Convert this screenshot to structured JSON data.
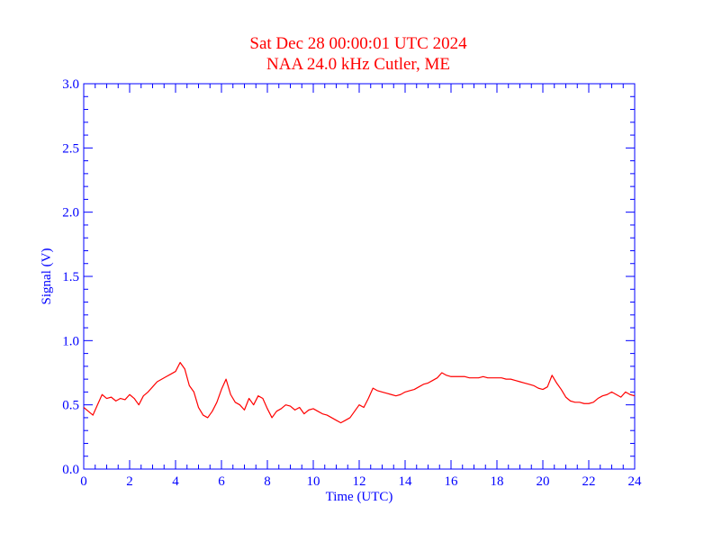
{
  "chart_data": {
    "type": "line",
    "title": "Sat Dec 28 00:00:01 UTC 2024",
    "subtitle": "NAA 24.0 kHz Cutler, ME",
    "xlabel": "Time (UTC)",
    "ylabel": "Signal (V)",
    "xlim": [
      0,
      24
    ],
    "ylim": [
      0.0,
      3.0
    ],
    "x_ticks": [
      0,
      2,
      4,
      6,
      8,
      10,
      12,
      14,
      16,
      18,
      20,
      22,
      24
    ],
    "x_tick_labels": [
      "0",
      "2",
      "4",
      "6",
      "8",
      "10",
      "12",
      "14",
      "16",
      "18",
      "20",
      "22",
      "24"
    ],
    "y_ticks": [
      0.0,
      0.5,
      1.0,
      1.5,
      2.0,
      2.5,
      3.0
    ],
    "y_tick_labels": [
      "0.0",
      "0.5",
      "1.0",
      "1.5",
      "2.0",
      "2.5",
      "3.0"
    ],
    "grid": false,
    "colors": {
      "axes": "#0000ff",
      "title": "#ff0000",
      "series": "#ff0000"
    },
    "series": [
      {
        "x": [
          0.0,
          0.2,
          0.4,
          0.6,
          0.8,
          1.0,
          1.2,
          1.4,
          1.6,
          1.8,
          2.0,
          2.2,
          2.4,
          2.6,
          2.8,
          3.0,
          3.2,
          3.4,
          3.6,
          3.8,
          4.0,
          4.2,
          4.4,
          4.6,
          4.8,
          5.0,
          5.2,
          5.4,
          5.6,
          5.8,
          6.0,
          6.2,
          6.4,
          6.6,
          6.8,
          7.0,
          7.2,
          7.4,
          7.6,
          7.8,
          8.0,
          8.2,
          8.4,
          8.6,
          8.8,
          9.0,
          9.2,
          9.4,
          9.6,
          9.8,
          10.0,
          10.2,
          10.4,
          10.6,
          10.8,
          11.0,
          11.2,
          11.4,
          11.6,
          11.8,
          12.0,
          12.2,
          12.4,
          12.6,
          12.8,
          13.0,
          13.2,
          13.4,
          13.6,
          13.8,
          14.0,
          14.2,
          14.4,
          14.6,
          14.8,
          15.0,
          15.2,
          15.4,
          15.6,
          15.8,
          16.0,
          16.2,
          16.4,
          16.6,
          16.8,
          17.0,
          17.2,
          17.4,
          17.6,
          17.8,
          18.0,
          18.2,
          18.4,
          18.6,
          18.8,
          19.0,
          19.2,
          19.4,
          19.6,
          19.8,
          20.0,
          20.2,
          20.4,
          20.6,
          20.8,
          21.0,
          21.2,
          21.4,
          21.6,
          21.8,
          22.0,
          22.2,
          22.4,
          22.6,
          22.8,
          23.0,
          23.2,
          23.4,
          23.6,
          23.8,
          24.0
        ],
        "y": [
          0.48,
          0.45,
          0.42,
          0.5,
          0.58,
          0.55,
          0.56,
          0.53,
          0.55,
          0.54,
          0.58,
          0.55,
          0.5,
          0.57,
          0.6,
          0.64,
          0.68,
          0.7,
          0.72,
          0.74,
          0.76,
          0.83,
          0.78,
          0.65,
          0.6,
          0.48,
          0.42,
          0.4,
          0.45,
          0.52,
          0.62,
          0.7,
          0.58,
          0.52,
          0.5,
          0.46,
          0.55,
          0.5,
          0.57,
          0.55,
          0.47,
          0.4,
          0.45,
          0.47,
          0.5,
          0.49,
          0.46,
          0.48,
          0.43,
          0.46,
          0.47,
          0.45,
          0.43,
          0.42,
          0.4,
          0.38,
          0.36,
          0.38,
          0.4,
          0.45,
          0.5,
          0.48,
          0.55,
          0.63,
          0.61,
          0.6,
          0.59,
          0.58,
          0.57,
          0.58,
          0.6,
          0.61,
          0.62,
          0.64,
          0.66,
          0.67,
          0.69,
          0.71,
          0.75,
          0.73,
          0.72,
          0.72,
          0.72,
          0.72,
          0.71,
          0.71,
          0.71,
          0.72,
          0.71,
          0.71,
          0.71,
          0.71,
          0.7,
          0.7,
          0.69,
          0.68,
          0.67,
          0.66,
          0.65,
          0.63,
          0.62,
          0.64,
          0.73,
          0.67,
          0.62,
          0.56,
          0.53,
          0.52,
          0.52,
          0.51,
          0.51,
          0.52,
          0.55,
          0.57,
          0.58,
          0.6,
          0.58,
          0.56,
          0.6,
          0.58,
          0.57
        ]
      }
    ]
  }
}
